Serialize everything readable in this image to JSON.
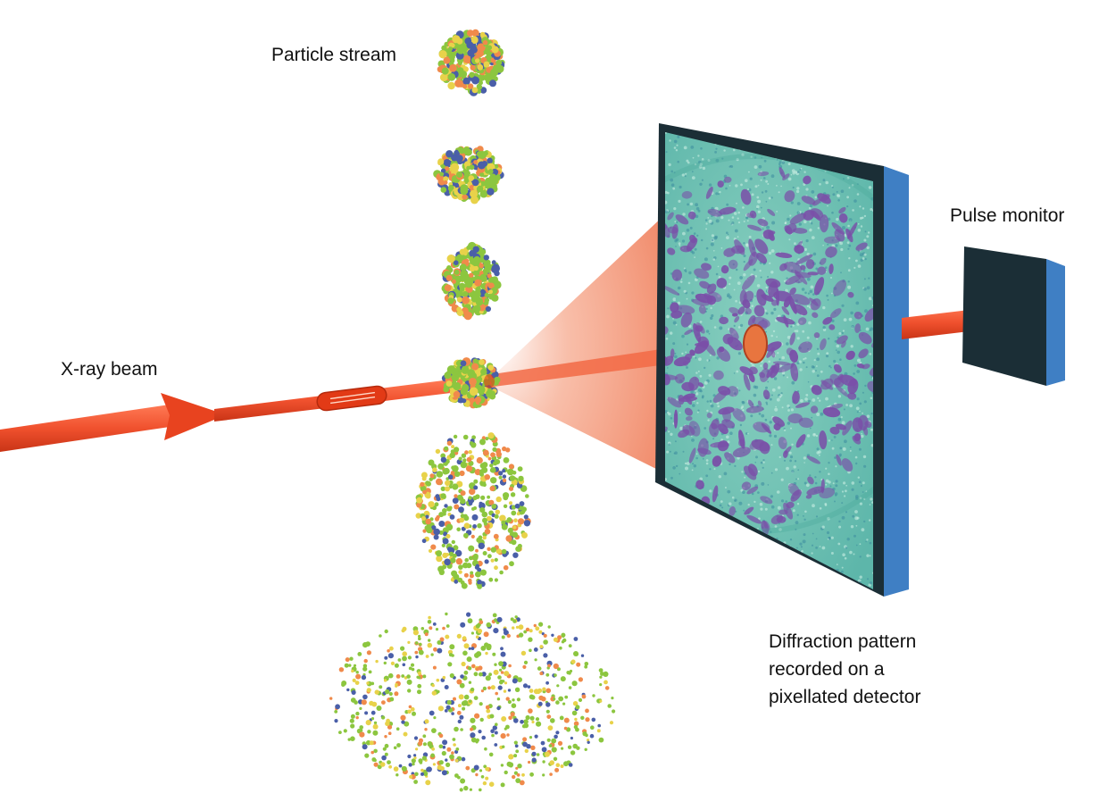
{
  "labels": {
    "particle_stream": "Particle stream",
    "xray_beam": "X-ray beam",
    "pulse_monitor": "Pulse monitor",
    "diffraction": [
      "Diffraction pattern",
      "recorded on a",
      "pixellated detector"
    ]
  },
  "colors": {
    "beam": "#f0512e",
    "beam_dark": "#d8361a",
    "detector_frame": "#1b2e36",
    "detector_side": "#3f7fc4",
    "pattern_bg": "#66c3b3",
    "pattern_spot": "#7a4fa8",
    "monitor_front": "#1b2e36",
    "monitor_side": "#3f7fc4",
    "particle_green": "#8cc63f",
    "particle_orange": "#f08a4b",
    "particle_blue": "#4a5fa8",
    "particle_yellow": "#e8d24a"
  }
}
